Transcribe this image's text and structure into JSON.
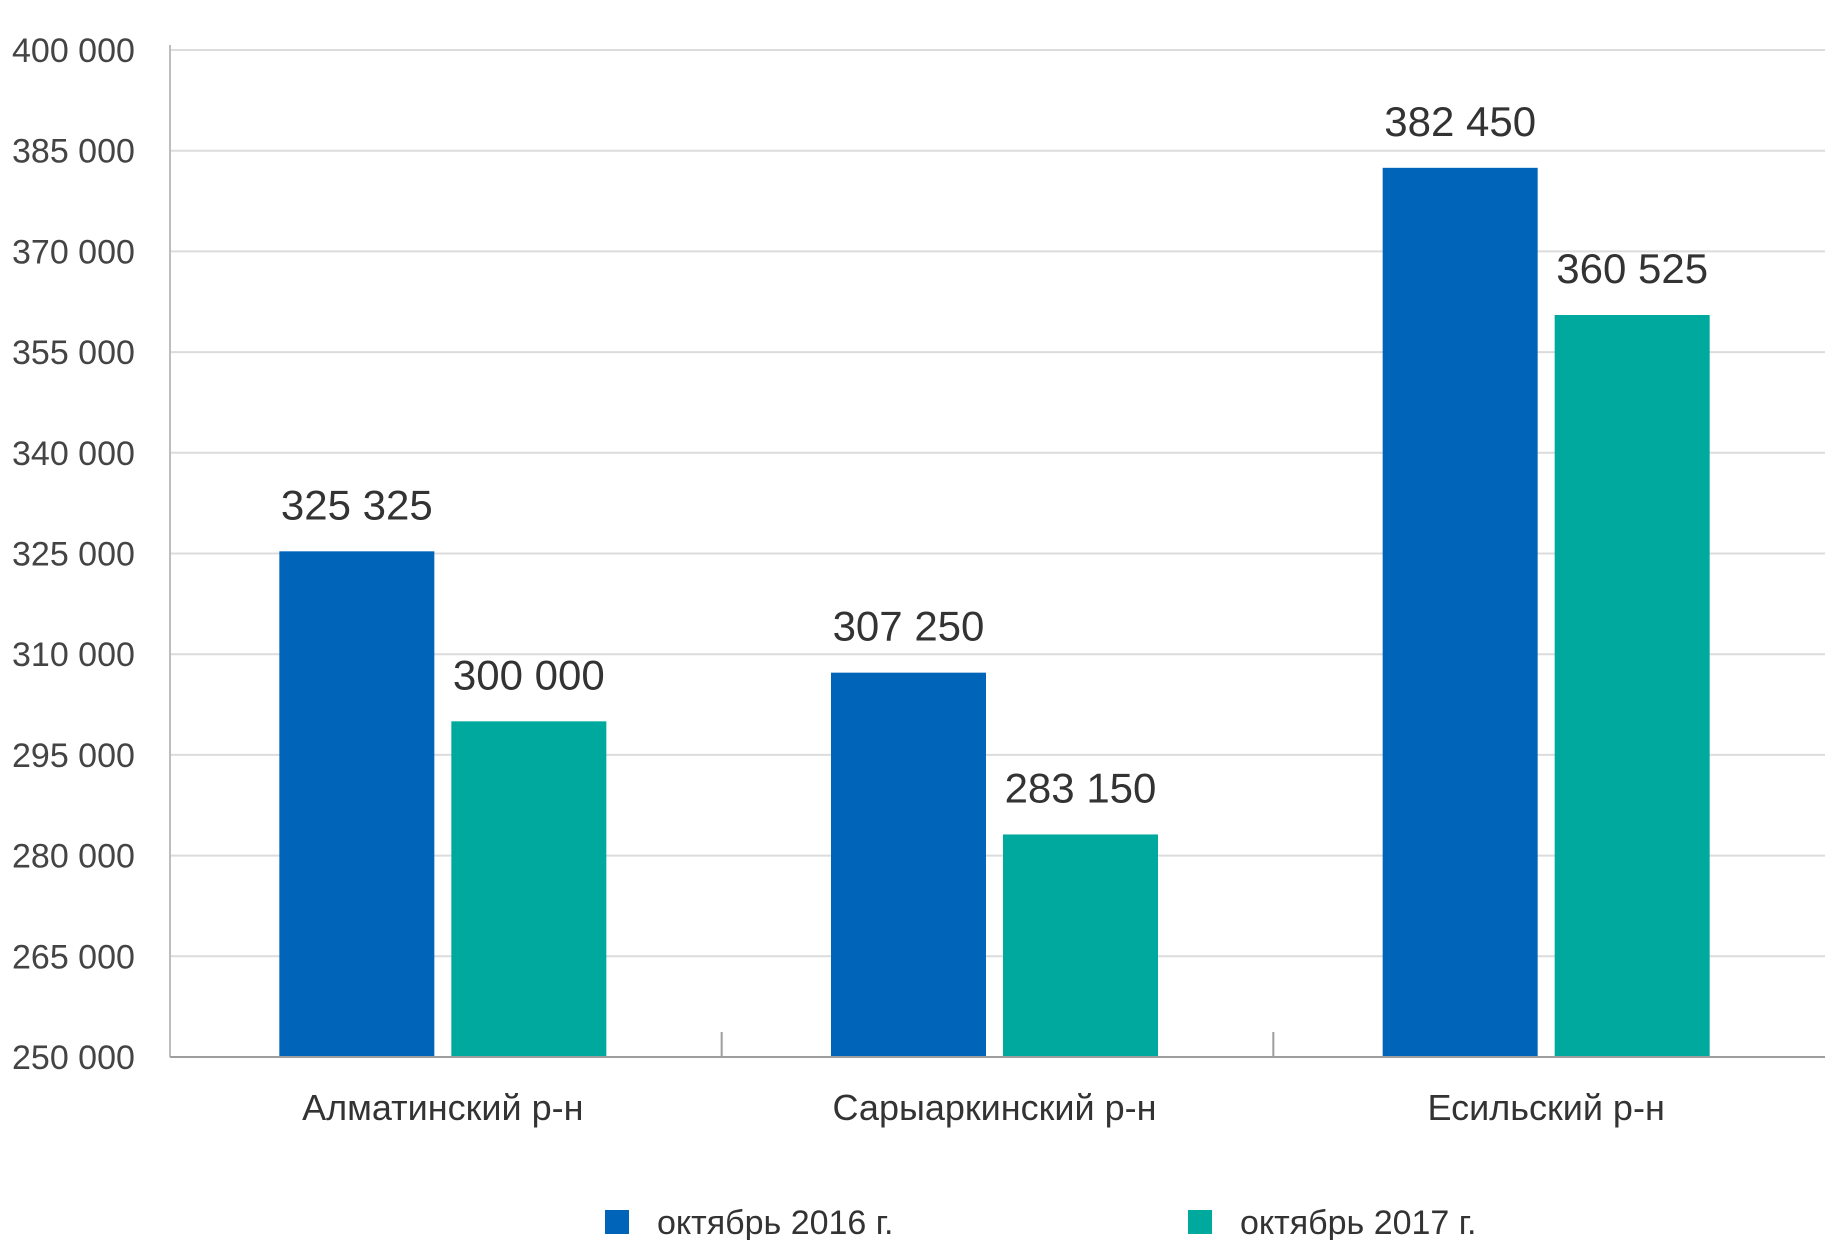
{
  "chart_data": {
    "type": "bar",
    "title": "",
    "xlabel": "",
    "ylabel": "",
    "categories": [
      "Алматинский р-н",
      "Сарыаркинский р-н",
      "Есильский р-н"
    ],
    "series": [
      {
        "name": "октябрь 2016 г.",
        "color": "#0065b8",
        "values": [
          325325,
          307250,
          382450
        ]
      },
      {
        "name": "октябрь 2017 г.",
        "color": "#00a99d",
        "values": [
          300000,
          283150,
          360525
        ]
      }
    ],
    "data_labels": [
      [
        "325 325",
        "307 250",
        "382 450"
      ],
      [
        "300 000",
        "283 150",
        "360 525"
      ]
    ],
    "ylim": [
      250000,
      400000
    ],
    "yticks": [
      250000,
      265000,
      280000,
      295000,
      310000,
      325000,
      340000,
      355000,
      370000,
      385000,
      400000
    ],
    "ytick_labels": [
      "250 000",
      "265 000",
      "280 000",
      "295 000",
      "310 000",
      "325 000",
      "340 000",
      "355 000",
      "370 000",
      "385 000",
      "400 000"
    ],
    "grid": true,
    "legend": {
      "placement": "bottom"
    }
  }
}
